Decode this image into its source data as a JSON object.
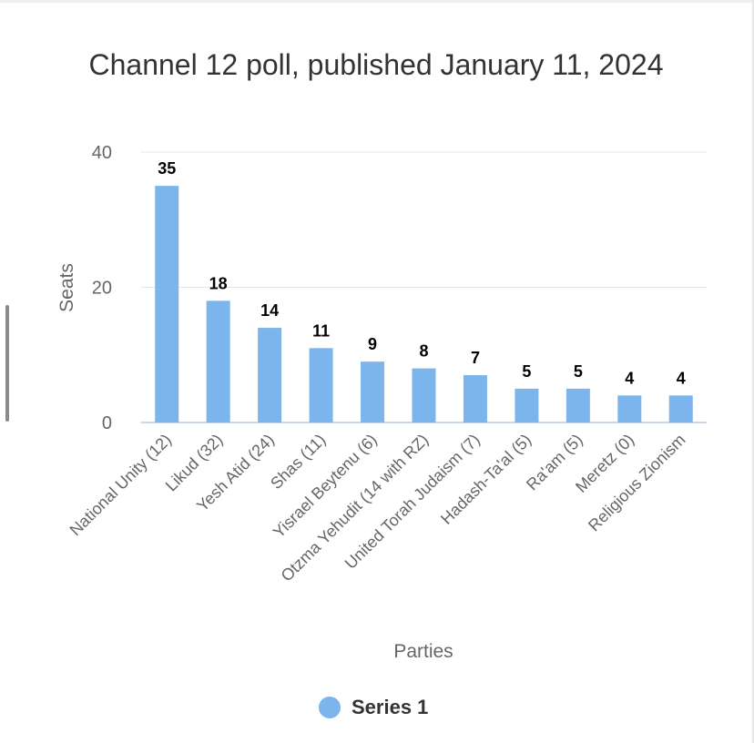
{
  "chart_data": {
    "type": "bar",
    "title": "Channel 12 poll, published January 11, 2024",
    "xlabel": "Parties",
    "ylabel": "Seats",
    "categories": [
      "National Unity (12)",
      "Likud (32)",
      "Yesh Atid (24)",
      "Shas (11)",
      "Yisrael Beytenu (6)",
      "Otzma Yehudit (14 with RZ)",
      "United Torah Judaism (7)",
      "Hadash-Ta'al (5)",
      "Ra'am (5)",
      "Meretz (0)",
      "Religious Zionism"
    ],
    "series": [
      {
        "name": "Series 1",
        "values": [
          35,
          18,
          14,
          11,
          9,
          8,
          7,
          5,
          5,
          4,
          4
        ],
        "color": "#7cb5ec"
      }
    ],
    "ylim": [
      0,
      40
    ],
    "yticks": [
      0,
      20,
      40
    ],
    "grid": true,
    "data_labels": true,
    "legend_position": "bottom"
  }
}
